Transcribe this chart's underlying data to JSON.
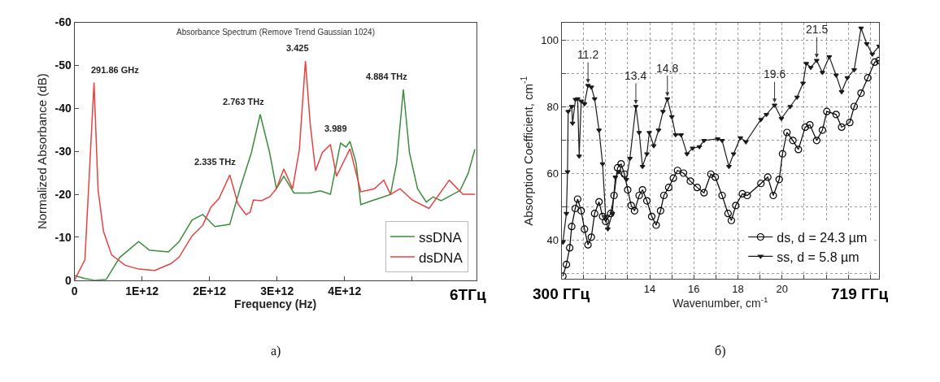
{
  "chart_data": [
    {
      "type": "line",
      "title": "Absorbance Spectrum (Remove Trend Gaussian 1024)",
      "xlabel": "Frequency (Hz)",
      "ylabel": "Normalized Absorbance (dB)",
      "xlim": [
        0,
        5950000000000.0
      ],
      "xticks": [
        0,
        {
          "value": 1000000000000.0,
          "label": "1E+12"
        },
        {
          "value": 2000000000000.0,
          "label": "2E+12"
        },
        {
          "value": 3000000000000.0,
          "label": "3E+12"
        },
        {
          "value": 4000000000000.0,
          "label": "4E+12"
        },
        {
          "value": 5000000000000.0,
          "label": null
        }
      ],
      "ylim": [
        0,
        -60
      ],
      "yticks": [
        0,
        -10,
        -20,
        -30,
        -40,
        -50,
        -60
      ],
      "grid": false,
      "legend": "bottom right",
      "marker": "none",
      "series": [
        {
          "name": "ssDNA",
          "color": "#3c8c3c",
          "x": [
            0,
            155000000000.0,
            310000000000.0,
            470000000000.0,
            670000000000.0,
            950000000000.0,
            1110000000000.0,
            1390000000000.0,
            1550000000000.0,
            1740000000000.0,
            1900000000000.0,
            2080000000000.0,
            2300000000000.0,
            2450000000000.0,
            2620000000000.0,
            2750000000000.0,
            2890000000000.0,
            2990000000000.0,
            3100000000000.0,
            3250000000000.0,
            3490000000000.0,
            3640000000000.0,
            3790000000000.0,
            3940000000000.0,
            4020000000000.0,
            4080000000000.0,
            4170000000000.0,
            4240000000000.0,
            4400000000000.0,
            4540000000000.0,
            4680000000000.0,
            4770000000000.0,
            4870000000000.0,
            4960000000000.0,
            5080000000000.0,
            5210000000000.0,
            5310000000000.0,
            5430000000000.0,
            5710000000000.0,
            5830000000000.0,
            5930000000000.0
          ],
          "values": [
            -1.1,
            -0.4,
            0,
            -0.2,
            -5.3,
            -9,
            -7,
            -6.6,
            -9,
            -14,
            -15.3,
            -12.5,
            -13,
            -21.3,
            -29.7,
            -38.6,
            -29.7,
            -21.3,
            -24.2,
            -20.3,
            -20.3,
            -20.8,
            -20,
            -31.9,
            -31,
            -32.3,
            -27.3,
            -17.6,
            -18.5,
            -19.2,
            -20,
            -27.3,
            -44.4,
            -29.7,
            -21.3,
            -18.2,
            -19.4,
            -18.5,
            -20.9,
            -24.9,
            -30.5
          ]
        },
        {
          "name": "dsDNA",
          "color": "#e8413f",
          "x": [
            0,
            155000000000.0,
            290000000000.0,
            350000000000.0,
            430000000000.0,
            550000000000.0,
            750000000000.0,
            950000000000.0,
            1190000000000.0,
            1430000000000.0,
            1550000000000.0,
            1740000000000.0,
            1900000000000.0,
            2020000000000.0,
            2140000000000.0,
            2300000000000.0,
            2420000000000.0,
            2540000000000.0,
            2600000000000.0,
            2650000000000.0,
            2770000000000.0,
            2890000000000.0,
            2990000000000.0,
            3100000000000.0,
            3230000000000.0,
            3330000000000.0,
            3420000000000.0,
            3490000000000.0,
            3570000000000.0,
            3670000000000.0,
            3790000000000.0,
            3880000000000.0,
            4080000000000.0,
            4240000000000.0,
            4440000000000.0,
            4580000000000.0,
            4680000000000.0,
            4820000000000.0,
            5000000000000.0,
            5250000000000.0,
            5550000000000.0,
            5750000000000.0,
            5930000000000.0
          ],
          "values": [
            0,
            -4.8,
            -46,
            -21,
            -11.4,
            -5.9,
            -3.5,
            -2.6,
            -2.3,
            -3.9,
            -5.4,
            -10.3,
            -12.8,
            -17,
            -19,
            -24.5,
            -17.8,
            -15.3,
            -15.8,
            -18.7,
            -18.5,
            -19.4,
            -21.3,
            -25.9,
            -21.3,
            -30.4,
            -51,
            -36.5,
            -25.5,
            -29.7,
            -31.6,
            -24.2,
            -30.6,
            -20.6,
            -21.3,
            -23.3,
            -20,
            -21.3,
            -18.7,
            -16.7,
            -23.3,
            -20,
            -20
          ]
        }
      ],
      "annotations": [
        {
          "text": "291.86 GHz",
          "x": 291860000000.0,
          "y": -46
        },
        {
          "text": "2.335 THz",
          "x": 2335000000000.0,
          "y": -24.5
        },
        {
          "text": "2.763 THz",
          "x": 2763000000000.0,
          "y": -38.6
        },
        {
          "text": "3.425",
          "x": 3425000000000.0,
          "y": -51
        },
        {
          "text": "3.989",
          "x": 3989000000000.0,
          "y": -32.3
        },
        {
          "text": "4.884 THz",
          "x": 4884000000000.0,
          "y": -44.4
        },
        "6ТГц",
        "а)"
      ]
    },
    {
      "type": "line",
      "xlabel": "Wavenumber, cm$^{-1}$",
      "ylabel": "Absorption Coefficient, cm$^{-1}$",
      "xlim": [
        10,
        24.4
      ],
      "xticks": [
        {
          "value": 10,
          "label": null
        },
        {
          "value": 11,
          "label": null
        },
        {
          "value": 12,
          "label": null
        },
        {
          "value": 13,
          "label": null
        },
        14,
        {
          "value": 15,
          "label": null
        },
        16,
        {
          "value": 17,
          "label": null
        },
        18,
        {
          "value": 19,
          "label": null
        },
        20,
        {
          "value": 21,
          "label": null
        },
        {
          "value": 22,
          "label": null
        },
        {
          "value": 23,
          "label": null
        },
        {
          "value": 24,
          "label": null
        }
      ],
      "ylim": [
        28.5,
        105.2
      ],
      "yticks": [
        {
          "value": 30,
          "label": null
        },
        40,
        {
          "value": 50,
          "label": null
        },
        60,
        {
          "value": 70,
          "label": null
        },
        80,
        {
          "value": 90,
          "label": null
        },
        100
      ],
      "grid": true,
      "legend": "bottom right",
      "series": [
        {
          "name": "ds, d = 24.3 µm",
          "color": "#000000",
          "marker": "circle",
          "x": [
            10.06,
            10.22,
            10.37,
            10.46,
            10.62,
            10.73,
            10.89,
            11.04,
            11.2,
            11.35,
            11.5,
            11.7,
            11.86,
            12.0,
            12.23,
            12.38,
            12.54,
            12.7,
            12.85,
            13.0,
            13.16,
            13.31,
            13.52,
            13.67,
            13.87,
            14.09,
            14.29,
            14.49,
            14.64,
            14.86,
            15.07,
            15.26,
            15.53,
            15.84,
            16.15,
            16.46,
            16.77,
            16.97,
            17.28,
            17.55,
            17.7,
            17.9,
            18.2,
            18.42,
            19.04,
            19.35,
            19.6,
            19.87,
            20.02,
            20.22,
            20.49,
            20.74,
            21.05,
            21.26,
            21.57,
            21.83,
            22.03,
            22.45,
            22.7,
            23.07,
            23.27,
            23.58,
            23.89,
            24.2,
            24.4
          ],
          "values": [
            29.3,
            32.8,
            37.8,
            44.2,
            49.6,
            52.4,
            48.9,
            43.4,
            38.7,
            41,
            48.1,
            51.6,
            47.2,
            45.7,
            48.1,
            53.5,
            61.8,
            63,
            59.9,
            55.2,
            50.5,
            48.9,
            53.5,
            55.2,
            51.9,
            47.2,
            44.6,
            48.9,
            53.5,
            55.9,
            58.7,
            61,
            60.2,
            57.8,
            55.9,
            54.3,
            59.9,
            59,
            53.5,
            48.1,
            46,
            50.5,
            54,
            53.5,
            57.1,
            59,
            53.5,
            58.3,
            66,
            72.4,
            70,
            67.3,
            74,
            74.7,
            70,
            73.1,
            78.7,
            77.8,
            74,
            75.4,
            80.2,
            84.2,
            88.8,
            93.5,
            94
          ]
        },
        {
          "name": "ss, d = 5.8 µm",
          "color": "#1a1a1a",
          "marker": "triangle",
          "x": [
            10.06,
            10.22,
            10.27,
            10.3,
            10.46,
            10.5,
            10.63,
            10.73,
            10.8,
            10.89,
            11.04,
            11.2,
            11.35,
            11.5,
            11.7,
            11.86,
            12.0,
            12.1,
            12.3,
            12.44,
            12.6,
            12.94,
            13.1,
            13.37,
            13.52,
            13.67,
            13.87,
            13.98,
            14.18,
            14.4,
            14.6,
            14.8,
            15.0,
            15.17,
            15.42,
            15.69,
            15.94,
            16.25,
            16.46,
            17.08,
            17.28,
            17.59,
            17.8,
            18.11,
            18.36,
            19.04,
            19.29,
            19.66,
            19.97,
            20.37,
            20.68,
            20.95,
            21.1,
            21.3,
            21.57,
            21.83,
            22.14,
            22.45,
            22.7,
            22.96,
            23.27,
            23.58,
            23.84,
            24.09,
            24.4
          ],
          "values": [
            39.5,
            48.1,
            60.6,
            78.7,
            80.2,
            75.2,
            82.3,
            82.5,
            65.3,
            81.8,
            81,
            86.5,
            86,
            82.5,
            73.1,
            63,
            47.2,
            43.5,
            48.1,
            59,
            60.6,
            58.3,
            64.6,
            80.2,
            72.4,
            62.2,
            66,
            72.4,
            68.4,
            73.1,
            78.7,
            82.5,
            77.1,
            71.7,
            71.7,
            66,
            67.7,
            68.1,
            70,
            70.5,
            70,
            62.2,
            66,
            70.8,
            69.6,
            76.3,
            77.8,
            80.6,
            76.6,
            80.2,
            83,
            87.2,
            93.1,
            91.9,
            94,
            90.4,
            95.1,
            89.6,
            84.6,
            88.8,
            91.2,
            103.7,
            99,
            95.9,
            98.3
          ]
        }
      ],
      "annotations": [
        {
          "text": "11.2",
          "x": 11.2,
          "y": 86.5
        },
        {
          "text": "13.4",
          "x": 13.37,
          "y": 80.2
        },
        {
          "text": "14.8",
          "x": 14.8,
          "y": 82.5
        },
        {
          "text": "19.6",
          "x": 19.66,
          "y": 80.6
        },
        {
          "text": "21.5",
          "x": 21.57,
          "y": 94
        },
        "300 ГГц",
        "719 ГГц",
        "б)"
      ]
    }
  ]
}
